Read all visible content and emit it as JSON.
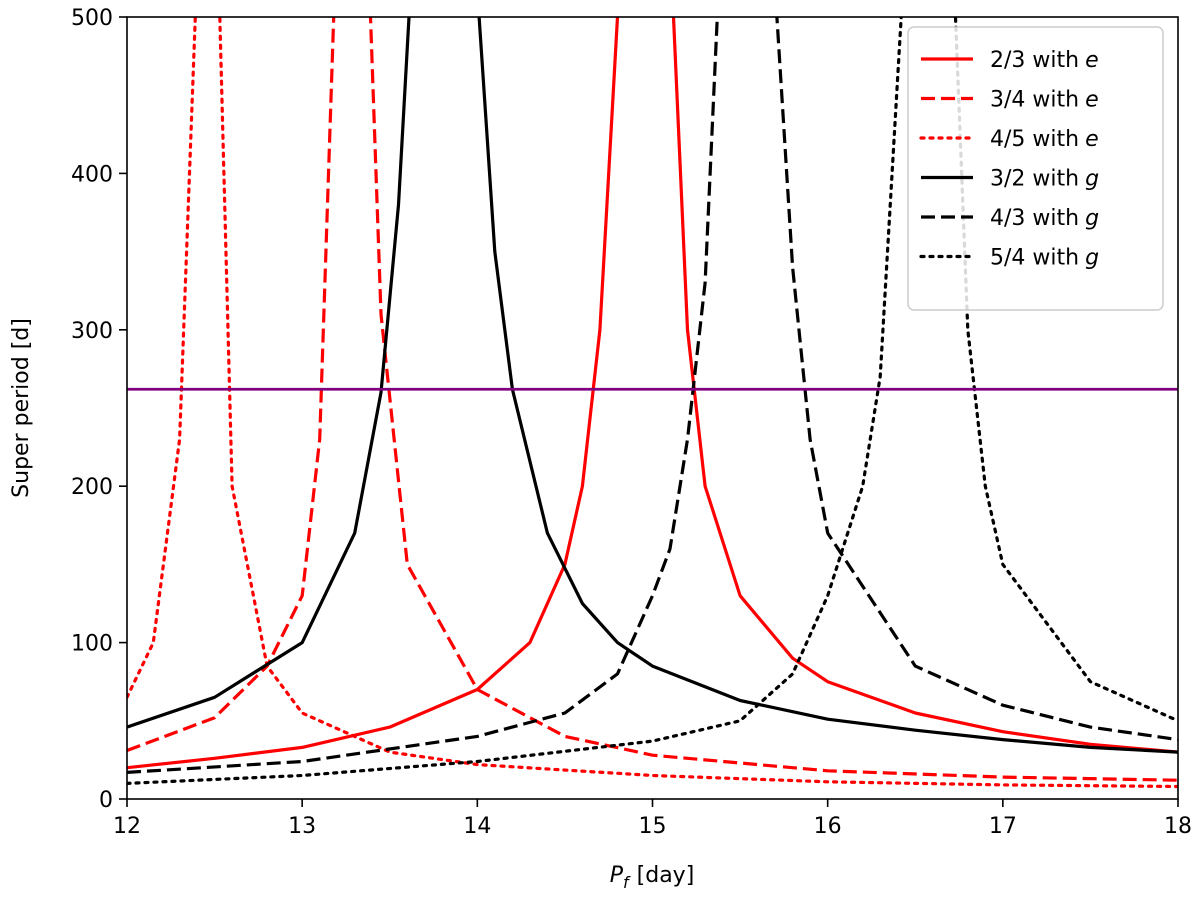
{
  "chart_data": {
    "type": "line",
    "title": "",
    "xlabel": {
      "var": "P",
      "sub": "f",
      "unit": "[day]"
    },
    "ylabel": "Super period [d]",
    "xlim": [
      12,
      18
    ],
    "ylim": [
      0,
      500
    ],
    "xticks": [
      "12",
      "13",
      "14",
      "15",
      "16",
      "17",
      "18"
    ],
    "yticks": [
      "0",
      "100",
      "200",
      "300",
      "400",
      "500"
    ],
    "legend_position": "top-right",
    "reference_line": {
      "y": 262,
      "color": "#800080"
    },
    "series": [
      {
        "name": "2/3 with e",
        "label_main": "2/3 with",
        "label_var": "e",
        "color": "#ff0000",
        "style": "solid",
        "poles": [
          14.805,
          15.105
        ],
        "x": [
          12.0,
          12.5,
          13.0,
          13.5,
          14.0,
          14.3,
          14.5,
          14.6,
          14.7,
          14.8,
          15.12,
          15.2,
          15.3,
          15.5,
          15.8,
          16.0,
          16.5,
          17.0,
          17.5,
          18.0
        ],
        "y": [
          20,
          26,
          33,
          46,
          70,
          100,
          150,
          200,
          300,
          500,
          500,
          300,
          200,
          130,
          90,
          75,
          55,
          43,
          35,
          30
        ]
      },
      {
        "name": "3/4 with e",
        "label_main": "3/4 with",
        "label_var": "e",
        "color": "#ff0000",
        "style": "dashed",
        "poles": [
          13.2,
          13.37
        ],
        "x": [
          12.0,
          12.5,
          12.8,
          13.0,
          13.1,
          13.18,
          13.39,
          13.45,
          13.6,
          14.0,
          14.5,
          15.0,
          16.0,
          17.0,
          18.0
        ],
        "y": [
          31,
          52,
          85,
          130,
          230,
          500,
          500,
          310,
          150,
          70,
          40,
          28,
          18,
          14,
          12
        ]
      },
      {
        "name": "4/5 with e",
        "label_main": "4/5 with",
        "label_var": "e",
        "color": "#ff0000",
        "style": "dotted",
        "poles": [
          12.4,
          12.52
        ],
        "x": [
          12.0,
          12.15,
          12.3,
          12.39,
          12.53,
          12.6,
          12.8,
          13.0,
          13.5,
          14.0,
          15.0,
          16.0,
          17.0,
          18.0
        ],
        "y": [
          65,
          100,
          230,
          500,
          500,
          200,
          85,
          55,
          30,
          22,
          15,
          11,
          9,
          8
        ]
      },
      {
        "name": "3/2 with g",
        "label_main": "3/2 with",
        "label_var": "g",
        "color": "#000000",
        "style": "solid",
        "poles": [
          13.62,
          14.0
        ],
        "x": [
          12.0,
          12.5,
          13.0,
          13.3,
          13.45,
          13.55,
          13.61,
          14.01,
          14.1,
          14.2,
          14.4,
          14.6,
          14.8,
          15.0,
          15.5,
          16.0,
          16.5,
          17.0,
          17.5,
          18.0
        ],
        "y": [
          46,
          65,
          100,
          170,
          260,
          380,
          500,
          500,
          350,
          262,
          170,
          125,
          100,
          85,
          63,
          51,
          44,
          38,
          33,
          30
        ]
      },
      {
        "name": "4/3 with g",
        "label_main": "4/3 with",
        "label_var": "g",
        "color": "#000000",
        "style": "dashed",
        "poles": [
          15.38,
          15.7
        ],
        "x": [
          12.0,
          13.0,
          14.0,
          14.5,
          14.8,
          15.0,
          15.1,
          15.2,
          15.3,
          15.37,
          15.71,
          15.8,
          15.9,
          16.0,
          16.5,
          17.0,
          17.5,
          18.0
        ],
        "y": [
          17,
          24,
          40,
          55,
          80,
          130,
          160,
          230,
          330,
          500,
          500,
          340,
          230,
          170,
          85,
          60,
          46,
          38
        ]
      },
      {
        "name": "5/4 with g",
        "label_main": "5/4 with",
        "label_var": "g",
        "color": "#000000",
        "style": "dotted",
        "poles": [
          16.43,
          16.72
        ],
        "x": [
          12.0,
          13.0,
          14.0,
          15.0,
          15.5,
          15.8,
          16.0,
          16.2,
          16.3,
          16.42,
          16.73,
          16.8,
          16.9,
          17.0,
          17.5,
          18.0
        ],
        "y": [
          10,
          15,
          24,
          37,
          50,
          80,
          130,
          200,
          270,
          500,
          500,
          300,
          200,
          150,
          75,
          50
        ]
      }
    ]
  }
}
